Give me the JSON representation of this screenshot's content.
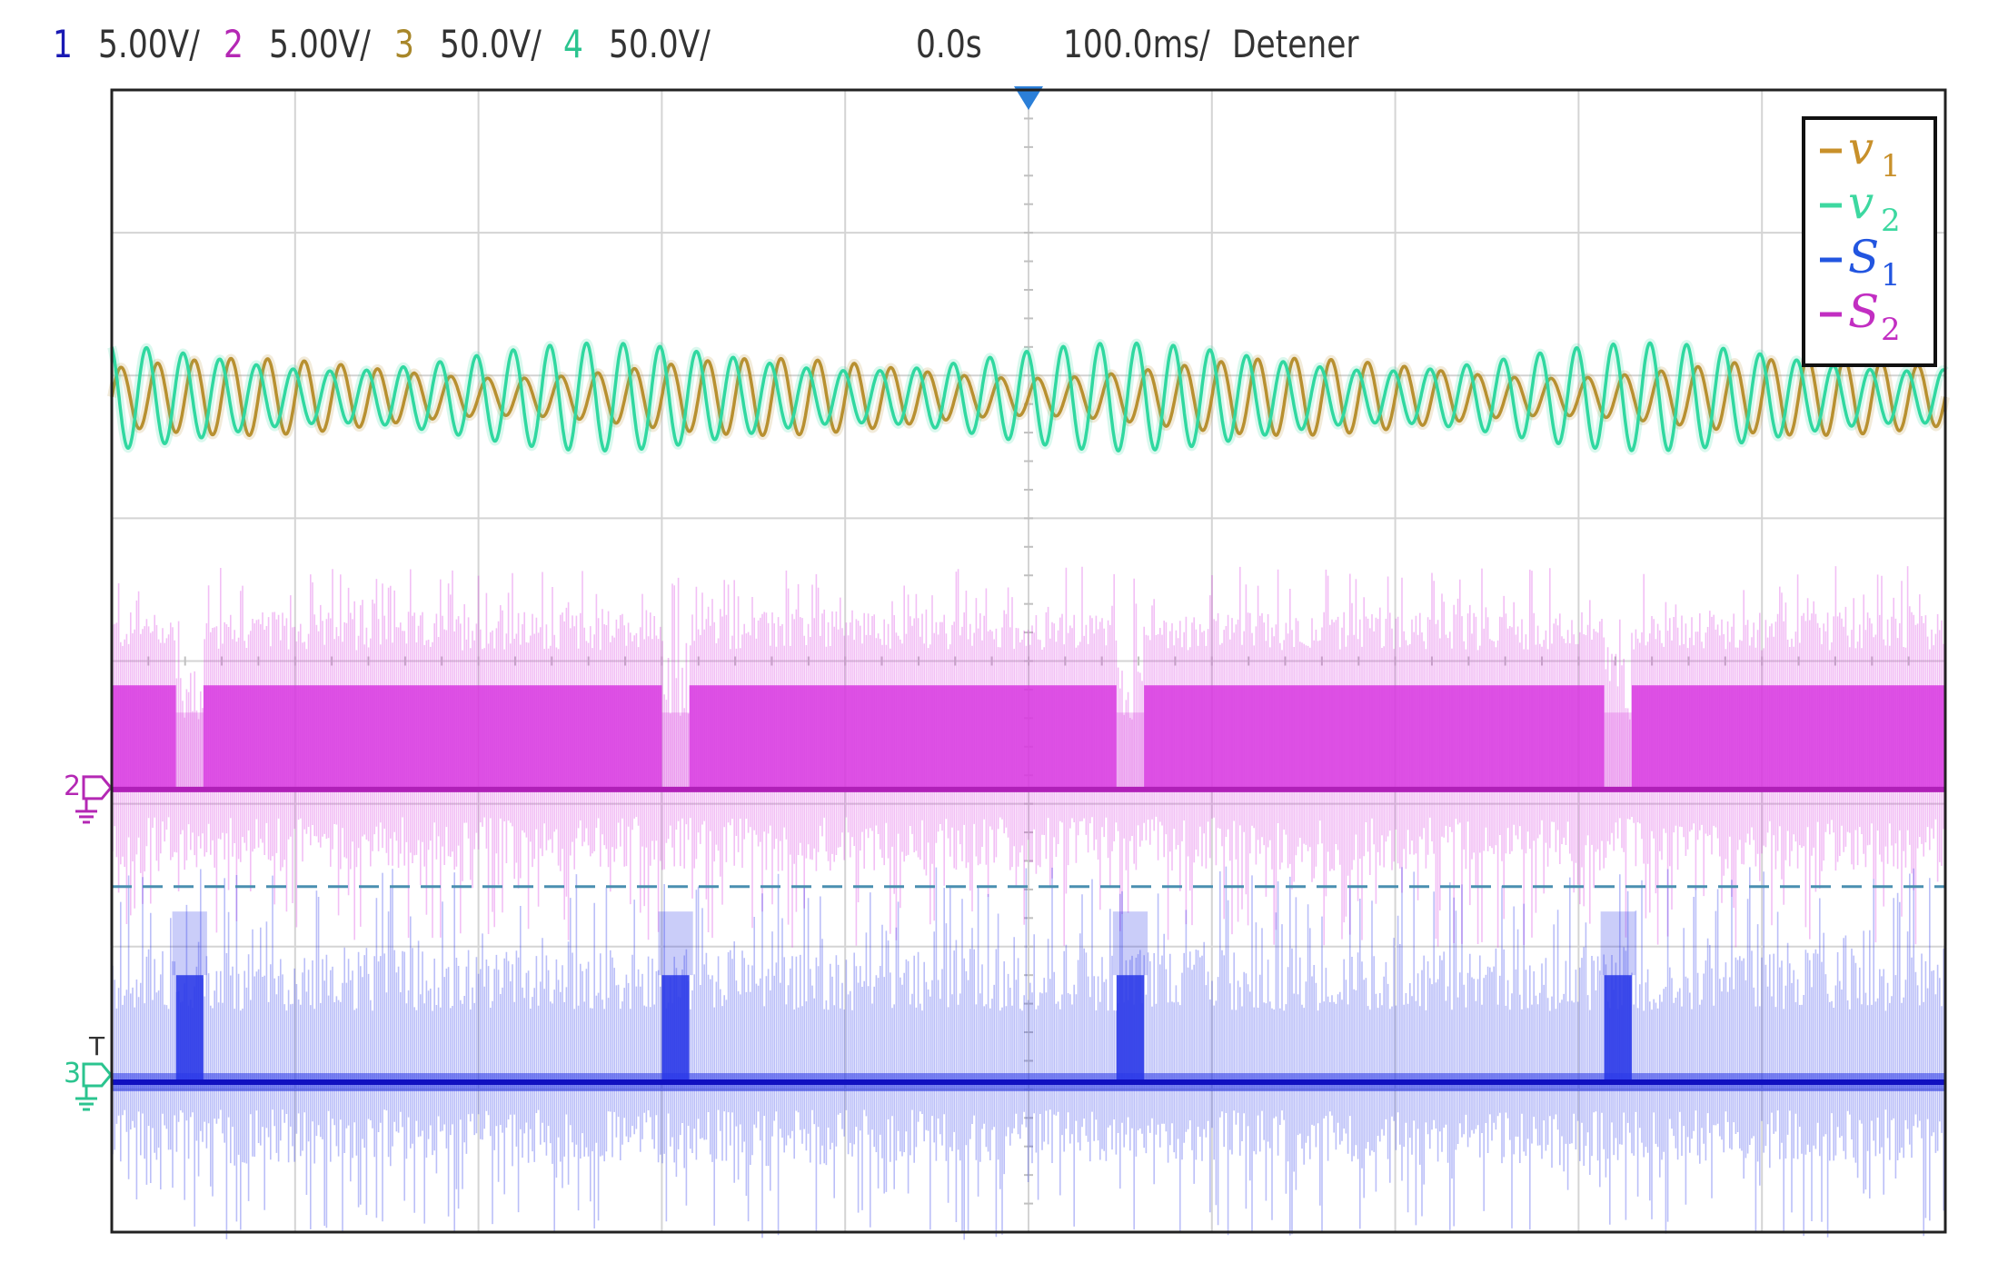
{
  "header": {
    "channels": [
      {
        "index": "1",
        "scale": "5.00V/",
        "color": "#1a1ab4"
      },
      {
        "index": "2",
        "scale": "5.00V/",
        "color": "#b428b4"
      },
      {
        "index": "3",
        "scale": "50.0V/",
        "color": "#a8872a"
      },
      {
        "index": "4",
        "scale": "50.0V/",
        "color": "#2bc48f"
      }
    ],
    "trigger_time": "0.0s",
    "timebase": "100.0ms/",
    "status": "Detener"
  },
  "markers": {
    "ch2_marker": "2",
    "ch3_marker": "3",
    "trigger_label": "T"
  },
  "chart_data": {
    "type": "line",
    "title": "",
    "xlabel": "",
    "ylabel": "",
    "x_range_ms": [
      -500,
      500
    ],
    "y_range_div": [
      -4,
      4
    ],
    "grid": true,
    "legend_position": "top-right",
    "legend": [
      {
        "label": "-v1",
        "base": "v",
        "sub": "1",
        "color": "#c8902a"
      },
      {
        "label": "-v2",
        "base": "v",
        "sub": "2",
        "color": "#3dd8a0"
      },
      {
        "label": "-S1",
        "base": "S",
        "sub": "1",
        "color": "#2255e0"
      },
      {
        "label": "-S2",
        "base": "S",
        "sub": "2",
        "color": "#c22ec2"
      }
    ],
    "series": [
      {
        "name": "v1",
        "channel": 3,
        "color": "#b89030",
        "kind": "sine",
        "center_div": 1.85,
        "amplitude_div": 0.2,
        "cycles": 50,
        "phase": 0
      },
      {
        "name": "v2",
        "channel": 4,
        "color": "#30d8a0",
        "kind": "sine",
        "center_div": 1.85,
        "amplitude_div": 0.28,
        "cycles": 50,
        "phase": 1.9
      },
      {
        "name": "S2",
        "channel": 2,
        "color": "#d838e0",
        "kind": "pulse",
        "baseline_div": -0.9,
        "high_div": -0.17,
        "gaps_ms": [
          [
            -465,
            -450
          ],
          [
            -200,
            -185
          ],
          [
            48,
            63
          ],
          [
            314,
            329
          ]
        ]
      },
      {
        "name": "S1",
        "channel": 1,
        "color": "#2a38e8",
        "kind": "pulse",
        "baseline_div": -2.95,
        "high_div": -2.2,
        "pulses_ms": [
          [
            -465,
            -450
          ],
          [
            -200,
            -185
          ],
          [
            48,
            63
          ],
          [
            314,
            329
          ]
        ]
      }
    ],
    "reference_line_div": -1.58,
    "trigger_point_ms": 0
  }
}
